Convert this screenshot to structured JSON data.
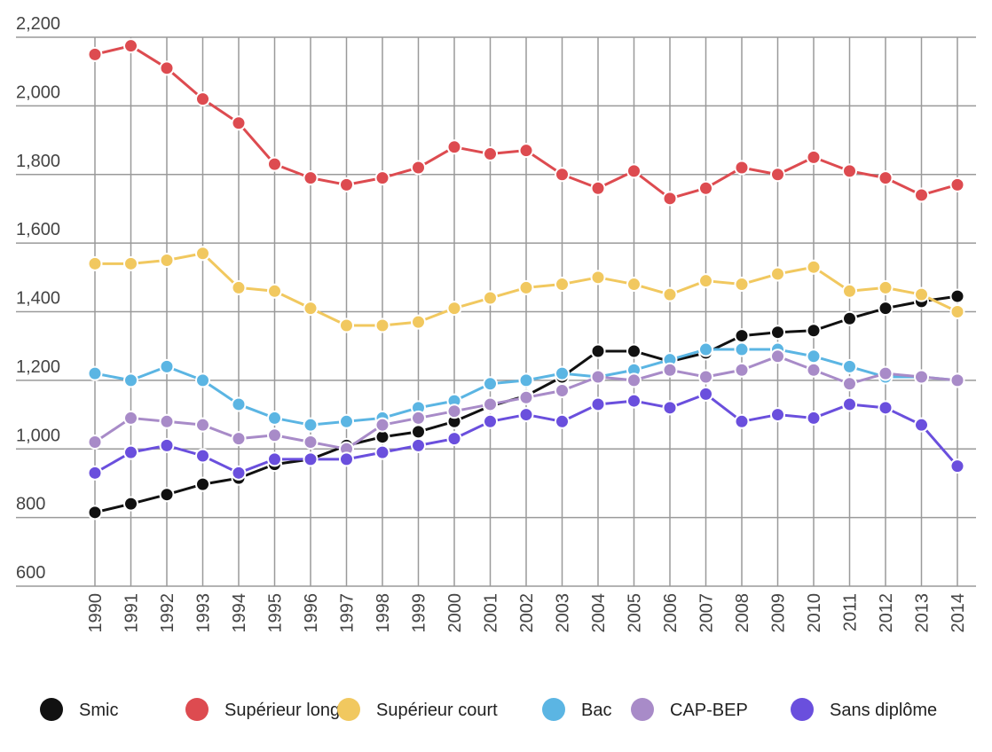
{
  "chart_data": {
    "type": "line",
    "title": "",
    "xlabel": "",
    "ylabel": "",
    "ylim": [
      600,
      2200
    ],
    "y_ticks": [
      "600",
      "800",
      "1,000",
      "1,200",
      "1,400",
      "1,600",
      "1,800",
      "2,000",
      "2,200"
    ],
    "y_tick_values": [
      600,
      800,
      1000,
      1200,
      1400,
      1600,
      1800,
      2000,
      2200
    ],
    "grid": true,
    "legend_placement": "bottom",
    "x": [
      "1990",
      "1991",
      "1992",
      "1993",
      "1994",
      "1995",
      "1996",
      "1997",
      "1998",
      "1999",
      "2000",
      "2001",
      "2002",
      "2003",
      "2004",
      "2005",
      "2006",
      "2007",
      "2008",
      "2009",
      "2010",
      "2011",
      "2012",
      "2013",
      "2014"
    ],
    "series": [
      {
        "name": "Smic",
        "color": "#111111",
        "values": [
          815,
          840,
          867,
          897,
          915,
          955,
          970,
          1010,
          1035,
          1050,
          1080,
          1125,
          1155,
          1210,
          1285,
          1285,
          1255,
          1280,
          1330,
          1340,
          1345,
          1380,
          1410,
          1430,
          1445
        ]
      },
      {
        "name": "Supérieur long",
        "color": "#dd4b50",
        "values": [
          2150,
          2175,
          2110,
          2020,
          1950,
          1830,
          1790,
          1770,
          1790,
          1820,
          1880,
          1860,
          1870,
          1800,
          1760,
          1810,
          1730,
          1760,
          1820,
          1800,
          1850,
          1810,
          1790,
          1740,
          1770
        ]
      },
      {
        "name": "Supérieur court",
        "color": "#f1c85f",
        "values": [
          1540,
          1540,
          1550,
          1570,
          1470,
          1460,
          1410,
          1360,
          1360,
          1370,
          1410,
          1440,
          1470,
          1480,
          1500,
          1480,
          1450,
          1490,
          1480,
          1510,
          1530,
          1460,
          1470,
          1450,
          1400
        ]
      },
      {
        "name": "Bac",
        "color": "#5bb5e3",
        "values": [
          1220,
          1200,
          1240,
          1200,
          1130,
          1090,
          1070,
          1080,
          1090,
          1120,
          1140,
          1190,
          1200,
          1220,
          1210,
          1230,
          1260,
          1290,
          1290,
          1290,
          1270,
          1240,
          1210,
          1210,
          1200
        ]
      },
      {
        "name": "CAP-BEP",
        "color": "#a88bc8",
        "values": [
          1020,
          1090,
          1080,
          1070,
          1030,
          1040,
          1020,
          1000,
          1070,
          1090,
          1110,
          1130,
          1150,
          1170,
          1210,
          1200,
          1230,
          1210,
          1230,
          1270,
          1230,
          1190,
          1220,
          1210,
          1200
        ]
      },
      {
        "name": "Sans diplôme",
        "color": "#6a4fdd",
        "values": [
          930,
          990,
          1010,
          980,
          930,
          970,
          970,
          970,
          990,
          1010,
          1030,
          1080,
          1100,
          1080,
          1130,
          1140,
          1120,
          1160,
          1080,
          1100,
          1090,
          1130,
          1120,
          1070,
          950
        ]
      }
    ]
  }
}
